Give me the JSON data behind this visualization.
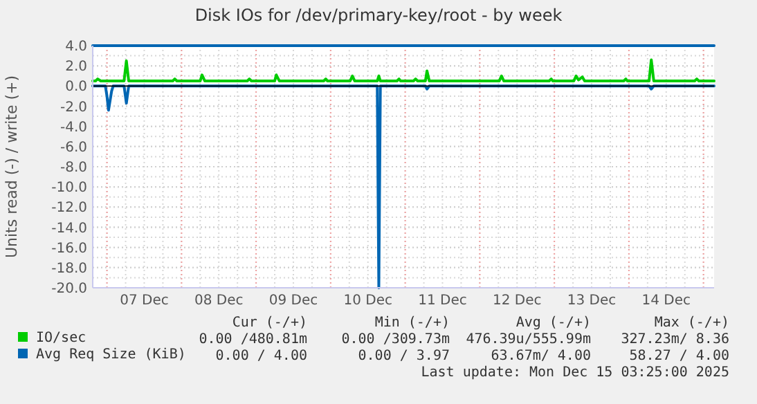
{
  "chart_data": {
    "type": "line",
    "title": "Disk IOs for /dev/primary-key/root - by week",
    "ylabel": "Units read (-) / write (+)",
    "xlim": [
      "2025-12-06T19:25",
      "2025-12-15T03:25"
    ],
    "xticks": [
      {
        "value": "2025-12-07T00:00",
        "label": null
      },
      {
        "value": "2025-12-07T12:00",
        "label": "07 Dec"
      },
      {
        "value": "2025-12-08T00:00",
        "label": null
      },
      {
        "value": "2025-12-08T12:00",
        "label": "08 Dec"
      },
      {
        "value": "2025-12-09T00:00",
        "label": null
      },
      {
        "value": "2025-12-09T12:00",
        "label": "09 Dec"
      },
      {
        "value": "2025-12-10T00:00",
        "label": null
      },
      {
        "value": "2025-12-10T12:00",
        "label": "10 Dec"
      },
      {
        "value": "2025-12-11T00:00",
        "label": null
      },
      {
        "value": "2025-12-11T12:00",
        "label": "11 Dec"
      },
      {
        "value": "2025-12-12T00:00",
        "label": null
      },
      {
        "value": "2025-12-12T12:00",
        "label": "12 Dec"
      },
      {
        "value": "2025-12-13T00:00",
        "label": null
      },
      {
        "value": "2025-12-13T12:00",
        "label": "13 Dec"
      },
      {
        "value": "2025-12-14T00:00",
        "label": null
      },
      {
        "value": "2025-12-14T12:00",
        "label": "14 Dec"
      },
      {
        "value": "2025-12-15T00:00",
        "label": null
      }
    ],
    "ylim": [
      -20,
      4
    ],
    "yticks": [
      {
        "value": 4,
        "label": "4.0"
      },
      {
        "value": 2,
        "label": "2.0"
      },
      {
        "value": 0,
        "label": "0.0"
      },
      {
        "value": -2,
        "label": "-2.0"
      },
      {
        "value": -4,
        "label": "-4.0"
      },
      {
        "value": -6,
        "label": "-6.0"
      },
      {
        "value": -8,
        "label": "-8.0"
      },
      {
        "value": -10,
        "label": "-10.0"
      },
      {
        "value": -12,
        "label": "-12.0"
      },
      {
        "value": -14,
        "label": "-14.0"
      },
      {
        "value": -16,
        "label": "-16.0"
      },
      {
        "value": -18,
        "label": "-18.0"
      },
      {
        "value": -20,
        "label": "-20.0"
      }
    ],
    "grid": true,
    "legend": "bottom",
    "marker": "none",
    "line_style": "solid",
    "ref_lines": [
      {
        "axis": "y",
        "value": 0,
        "color": "#000000"
      }
    ],
    "series": [
      {
        "name": "IO/sec",
        "color": "#00cc00",
        "x": [
          "2025-12-06T19:25",
          "2025-12-06T20:20",
          "2025-12-06T21:00",
          "2025-12-06T22:00",
          "2025-12-07T05:30",
          "2025-12-07T06:15",
          "2025-12-07T07:00",
          "2025-12-07T21:10",
          "2025-12-07T21:50",
          "2025-12-07T22:30",
          "2025-12-08T06:00",
          "2025-12-08T06:36",
          "2025-12-08T07:30",
          "2025-12-08T21:10",
          "2025-12-08T21:50",
          "2025-12-08T22:30",
          "2025-12-09T06:00",
          "2025-12-09T06:30",
          "2025-12-09T07:30",
          "2025-12-09T21:45",
          "2025-12-09T22:25",
          "2025-12-09T23:00",
          "2025-12-10T06:15",
          "2025-12-10T07:00",
          "2025-12-10T07:45",
          "2025-12-10T15:00",
          "2025-12-10T15:30",
          "2025-12-10T16:00",
          "2025-12-10T21:20",
          "2025-12-10T22:00",
          "2025-12-10T22:30",
          "2025-12-11T02:40",
          "2025-12-11T03:20",
          "2025-12-11T04:00",
          "2025-12-11T06:30",
          "2025-12-11T07:00",
          "2025-12-11T07:45",
          "2025-12-12T06:15",
          "2025-12-12T07:00",
          "2025-12-12T07:45",
          "2025-12-12T22:20",
          "2025-12-12T23:00",
          "2025-12-12T23:30",
          "2025-12-13T06:15",
          "2025-12-13T07:00",
          "2025-12-13T07:45",
          "2025-12-13T09:00",
          "2025-12-13T09:45",
          "2025-12-13T22:20",
          "2025-12-13T23:00",
          "2025-12-13T23:30",
          "2025-12-14T06:30",
          "2025-12-14T07:12",
          "2025-12-14T08:00",
          "2025-12-14T21:10",
          "2025-12-14T21:50",
          "2025-12-14T22:30",
          "2025-12-15T03:25"
        ],
        "values": [
          0.5,
          0.5,
          0.7,
          0.5,
          0.5,
          2.5,
          0.5,
          0.5,
          0.7,
          0.5,
          0.5,
          1.1,
          0.5,
          0.5,
          0.7,
          0.5,
          0.5,
          1.1,
          0.5,
          0.5,
          0.7,
          0.5,
          0.5,
          1.0,
          0.5,
          0.5,
          1.0,
          0.5,
          0.5,
          0.7,
          0.5,
          0.5,
          0.7,
          0.5,
          0.5,
          1.5,
          0.5,
          0.5,
          1.0,
          0.5,
          0.5,
          0.7,
          0.5,
          0.5,
          1.0,
          0.6,
          0.9,
          0.5,
          0.5,
          0.7,
          0.5,
          0.5,
          2.6,
          0.5,
          0.5,
          0.7,
          0.5,
          0.5
        ]
      },
      {
        "name": "Avg Req Size (KiB)",
        "color": "#0066b3",
        "x": [
          "2025-12-06T19:25",
          "2025-12-15T03:25"
        ],
        "values": [
          4,
          4
        ]
      },
      {
        "color": "#0066b3",
        "x": [
          "2025-12-06T19:25",
          "2025-12-06T23:30",
          "2025-12-07T00:00",
          "2025-12-07T00:30",
          "2025-12-07T01:30",
          "2025-12-07T02:00",
          "2025-12-07T05:30",
          "2025-12-07T06:15",
          "2025-12-07T07:00",
          "2025-12-10T15:00",
          "2025-12-10T15:30",
          "2025-12-10T16:00",
          "2025-12-11T06:30",
          "2025-12-11T07:00",
          "2025-12-11T07:45",
          "2025-12-14T06:30",
          "2025-12-14T07:12",
          "2025-12-14T08:00",
          "2025-12-15T03:25"
        ],
        "values": [
          0,
          0,
          -1.0,
          -2.4,
          -0.5,
          0,
          0,
          -1.7,
          0,
          0,
          -20,
          0,
          0,
          -0.3,
          0,
          0,
          -0.3,
          0,
          0
        ]
      }
    ],
    "annotations": [
      "Cur (-/+)",
      "Min (-/+)",
      "Avg (-/+)",
      "Max (-/+)",
      "0.00 /480.81m",
      "0.00 /309.73m",
      "476.39u/555.99m",
      "327.23m/ 8.36",
      "0.00 / 4.00",
      "0.00 / 3.97",
      "63.67m/ 4.00",
      "58.27 / 4.00",
      "Last update: Mon Dec 15 03:25:00 2025"
    ]
  }
}
